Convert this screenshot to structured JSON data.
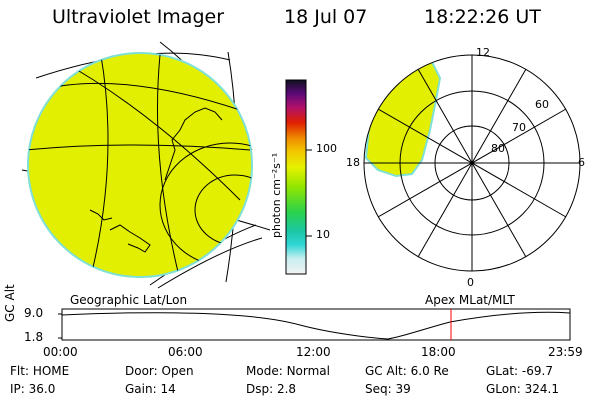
{
  "header": {
    "instrument": "Ultraviolet Imager",
    "date": "18 Jul 07",
    "time": "18:22:26 UT"
  },
  "colorbar": {
    "unit": "photon cm⁻²s⁻¹",
    "ticks": [
      "100",
      "10"
    ]
  },
  "polar": {
    "mlt_labels": [
      "12",
      "18",
      "6",
      "0"
    ],
    "mlat_labels": [
      "60",
      "70",
      "80"
    ]
  },
  "map_labels": {
    "left": "Geographic Lat/Lon",
    "right": "Apex MLat/MLT"
  },
  "timeline": {
    "axis_title": "GC Alt",
    "y_ticks": [
      "9.0",
      "1.8"
    ],
    "x_ticks": [
      "00:00",
      "06:00",
      "12:00",
      "18:00",
      "23:59"
    ],
    "marker_color": "#ff0000"
  },
  "status": {
    "row1": [
      {
        "label": "Flt:",
        "value": "HOME"
      },
      {
        "label": "Door:",
        "value": "Open"
      },
      {
        "label": "Mode:",
        "value": "Normal"
      },
      {
        "label": "GC Alt:",
        "value": "6.0 Re"
      },
      {
        "label": "GLat:",
        "value": "-69.7"
      }
    ],
    "row2": [
      {
        "label": "IP:",
        "value": "36.0"
      },
      {
        "label": "Gain:",
        "value": "14"
      },
      {
        "label": "Dsp:",
        "value": "2.8"
      },
      {
        "label": "Seq:",
        "value": "39"
      },
      {
        "label": "GLon:",
        "value": "324.1"
      }
    ]
  },
  "colors": {
    "aurora_fill": "#e2ef00",
    "aurora_edge": "#7fe0d6"
  }
}
